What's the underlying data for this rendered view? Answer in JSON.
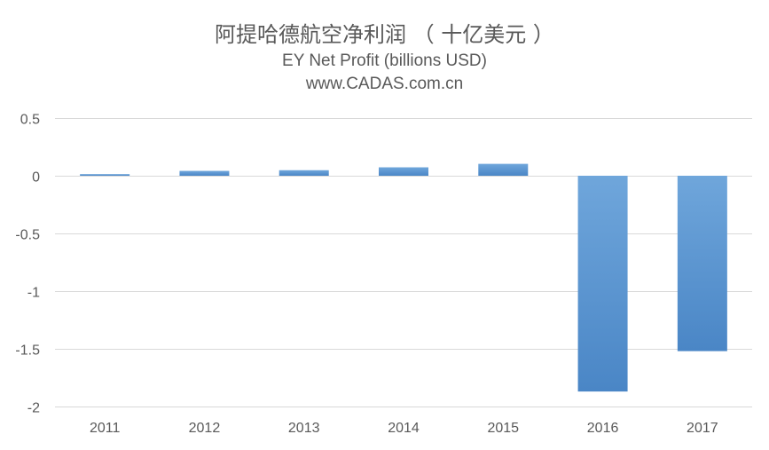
{
  "chart_data": {
    "type": "bar",
    "title": "阿提哈德航空净利润 （ 十亿美元 ）",
    "subtitle": "EY Net Profit (billions USD)",
    "source_text": "www.CADAS.com.cn",
    "categories": [
      "2011",
      "2012",
      "2013",
      "2014",
      "2015",
      "2016",
      "2017"
    ],
    "values": [
      0.014,
      0.042,
      0.048,
      0.073,
      0.103,
      -1.87,
      -1.52
    ],
    "ylim": [
      -2,
      0.5
    ],
    "yticks": [
      0.5,
      0,
      -0.5,
      -1,
      -1.5,
      -2
    ],
    "ytick_labels": [
      "0.5",
      "0",
      "-0.5",
      "-1",
      "-1.5",
      "-2"
    ],
    "grid": true,
    "legend": "none",
    "bar_color": "#5b9bd5"
  }
}
